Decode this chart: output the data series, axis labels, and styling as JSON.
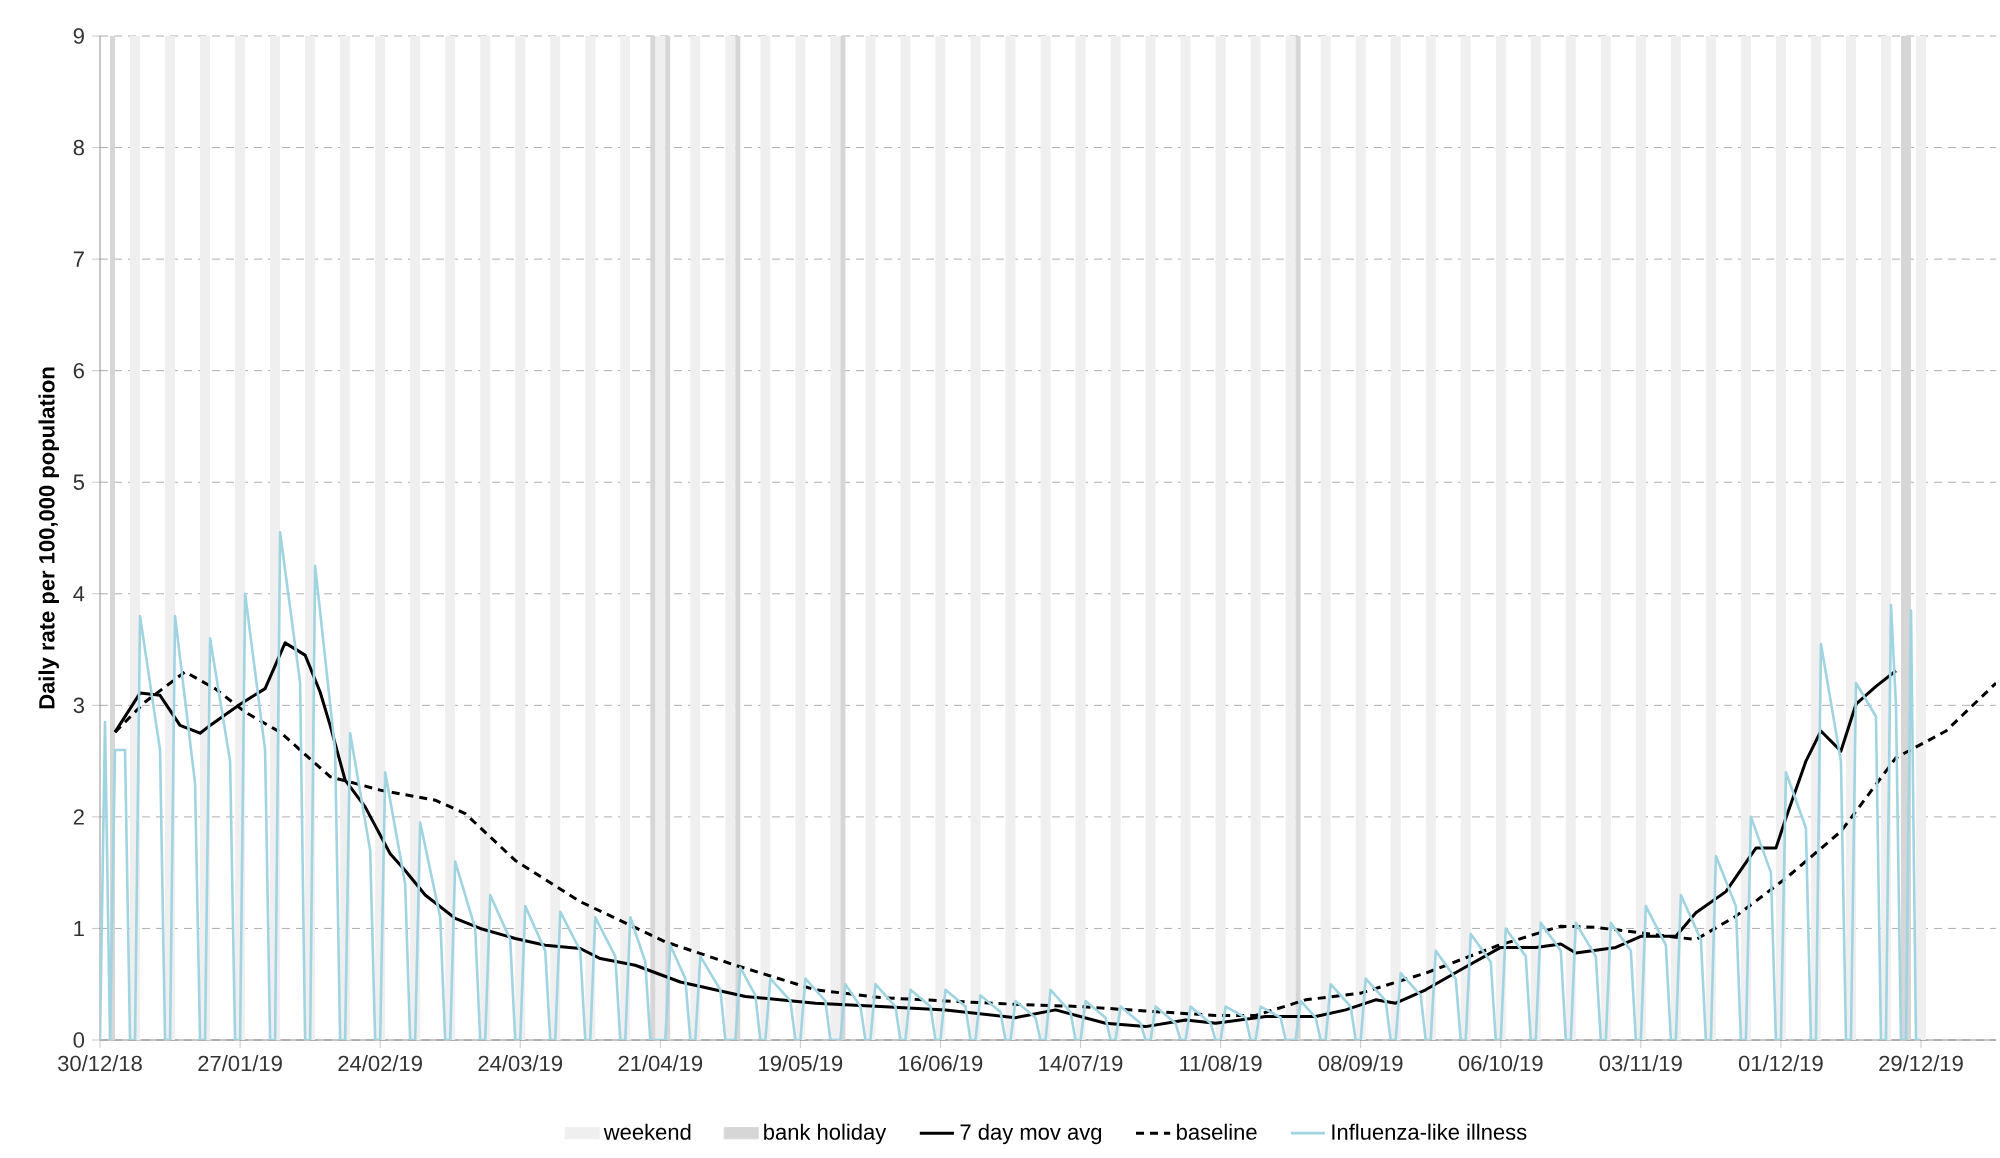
{
  "chart_data": {
    "type": "line",
    "ylabel": "Daily rate per 100,000 population",
    "xlim": [
      "2018-12-30",
      "2020-01-13"
    ],
    "xticks": [
      {
        "value": "2018-12-30",
        "label": "30/12/18"
      },
      {
        "value": "2019-01-27",
        "label": "27/01/19"
      },
      {
        "value": "2019-02-24",
        "label": "24/02/19"
      },
      {
        "value": "2019-03-24",
        "label": "24/03/19"
      },
      {
        "value": "2019-04-21",
        "label": "21/04/19"
      },
      {
        "value": "2019-05-19",
        "label": "19/05/19"
      },
      {
        "value": "2019-06-16",
        "label": "16/06/19"
      },
      {
        "value": "2019-07-14",
        "label": "14/07/19"
      },
      {
        "value": "2019-08-11",
        "label": "11/08/19"
      },
      {
        "value": "2019-09-08",
        "label": "08/09/19"
      },
      {
        "value": "2019-10-06",
        "label": "06/10/19"
      },
      {
        "value": "2019-11-03",
        "label": "03/11/19"
      },
      {
        "value": "2019-12-01",
        "label": "01/12/19"
      },
      {
        "value": "2019-12-29",
        "label": "29/12/19"
      }
    ],
    "ylim": [
      0,
      9
    ],
    "yticks": [
      0,
      1,
      2,
      3,
      4,
      5,
      6,
      7,
      8,
      9
    ],
    "grid": "y",
    "legend": "bottom",
    "bands": [
      {
        "axis": "x",
        "from": "2019-01-05",
        "to": "2019-01-07",
        "label": "weekend",
        "color": "#efefef"
      },
      {
        "axis": "x",
        "from": "2019-01-12",
        "to": "2019-01-14",
        "color": "#efefef"
      },
      {
        "axis": "x",
        "from": "2019-01-19",
        "to": "2019-01-21",
        "color": "#efefef"
      },
      {
        "axis": "x",
        "from": "2019-01-26",
        "to": "2019-01-28",
        "color": "#efefef"
      },
      {
        "axis": "x",
        "from": "2019-02-02",
        "to": "2019-02-04",
        "color": "#efefef"
      },
      {
        "axis": "x",
        "from": "2019-02-09",
        "to": "2019-02-11",
        "color": "#efefef"
      },
      {
        "axis": "x",
        "from": "2019-02-16",
        "to": "2019-02-18",
        "color": "#efefef"
      },
      {
        "axis": "x",
        "from": "2019-02-23",
        "to": "2019-02-25",
        "color": "#efefef"
      },
      {
        "axis": "x",
        "from": "2019-03-02",
        "to": "2019-03-04",
        "color": "#efefef"
      },
      {
        "axis": "x",
        "from": "2019-03-09",
        "to": "2019-03-11",
        "color": "#efefef"
      },
      {
        "axis": "x",
        "from": "2019-03-16",
        "to": "2019-03-18",
        "color": "#efefef"
      },
      {
        "axis": "x",
        "from": "2019-03-23",
        "to": "2019-03-25",
        "color": "#efefef"
      },
      {
        "axis": "x",
        "from": "2019-03-30",
        "to": "2019-04-01",
        "color": "#efefef"
      },
      {
        "axis": "x",
        "from": "2019-04-06",
        "to": "2019-04-08",
        "color": "#efefef"
      },
      {
        "axis": "x",
        "from": "2019-04-13",
        "to": "2019-04-15",
        "color": "#efefef"
      },
      {
        "axis": "x",
        "from": "2019-04-20",
        "to": "2019-04-22",
        "color": "#efefef"
      },
      {
        "axis": "x",
        "from": "2019-04-27",
        "to": "2019-04-29",
        "color": "#efefef"
      },
      {
        "axis": "x",
        "from": "2019-05-04",
        "to": "2019-05-06",
        "color": "#efefef"
      },
      {
        "axis": "x",
        "from": "2019-05-11",
        "to": "2019-05-13",
        "color": "#efefef"
      },
      {
        "axis": "x",
        "from": "2019-05-18",
        "to": "2019-05-20",
        "color": "#efefef"
      },
      {
        "axis": "x",
        "from": "2019-05-25",
        "to": "2019-05-27",
        "color": "#efefef"
      },
      {
        "axis": "x",
        "from": "2019-06-01",
        "to": "2019-06-03",
        "color": "#efefef"
      },
      {
        "axis": "x",
        "from": "2019-06-08",
        "to": "2019-06-10",
        "color": "#efefef"
      },
      {
        "axis": "x",
        "from": "2019-06-15",
        "to": "2019-06-17",
        "color": "#efefef"
      },
      {
        "axis": "x",
        "from": "2019-06-22",
        "to": "2019-06-24",
        "color": "#efefef"
      },
      {
        "axis": "x",
        "from": "2019-06-29",
        "to": "2019-07-01",
        "color": "#efefef"
      },
      {
        "axis": "x",
        "from": "2019-07-06",
        "to": "2019-07-08",
        "color": "#efefef"
      },
      {
        "axis": "x",
        "from": "2019-07-13",
        "to": "2019-07-15",
        "color": "#efefef"
      },
      {
        "axis": "x",
        "from": "2019-07-20",
        "to": "2019-07-22",
        "color": "#efefef"
      },
      {
        "axis": "x",
        "from": "2019-07-27",
        "to": "2019-07-29",
        "color": "#efefef"
      },
      {
        "axis": "x",
        "from": "2019-08-03",
        "to": "2019-08-05",
        "color": "#efefef"
      },
      {
        "axis": "x",
        "from": "2019-08-10",
        "to": "2019-08-12",
        "color": "#efefef"
      },
      {
        "axis": "x",
        "from": "2019-08-17",
        "to": "2019-08-19",
        "color": "#efefef"
      },
      {
        "axis": "x",
        "from": "2019-08-24",
        "to": "2019-08-26",
        "color": "#efefef"
      },
      {
        "axis": "x",
        "from": "2019-08-31",
        "to": "2019-09-02",
        "color": "#efefef"
      },
      {
        "axis": "x",
        "from": "2019-09-07",
        "to": "2019-09-09",
        "color": "#efefef"
      },
      {
        "axis": "x",
        "from": "2019-09-14",
        "to": "2019-09-16",
        "color": "#efefef"
      },
      {
        "axis": "x",
        "from": "2019-09-21",
        "to": "2019-09-23",
        "color": "#efefef"
      },
      {
        "axis": "x",
        "from": "2019-09-28",
        "to": "2019-09-30",
        "color": "#efefef"
      },
      {
        "axis": "x",
        "from": "2019-10-05",
        "to": "2019-10-07",
        "color": "#efefef"
      },
      {
        "axis": "x",
        "from": "2019-10-12",
        "to": "2019-10-14",
        "color": "#efefef"
      },
      {
        "axis": "x",
        "from": "2019-10-19",
        "to": "2019-10-21",
        "color": "#efefef"
      },
      {
        "axis": "x",
        "from": "2019-10-26",
        "to": "2019-10-28",
        "color": "#efefef"
      },
      {
        "axis": "x",
        "from": "2019-11-02",
        "to": "2019-11-04",
        "color": "#efefef"
      },
      {
        "axis": "x",
        "from": "2019-11-09",
        "to": "2019-11-11",
        "color": "#efefef"
      },
      {
        "axis": "x",
        "from": "2019-11-16",
        "to": "2019-11-18",
        "color": "#efefef"
      },
      {
        "axis": "x",
        "from": "2019-11-23",
        "to": "2019-11-25",
        "color": "#efefef"
      },
      {
        "axis": "x",
        "from": "2019-11-30",
        "to": "2019-12-02",
        "color": "#efefef"
      },
      {
        "axis": "x",
        "from": "2019-12-07",
        "to": "2019-12-09",
        "color": "#efefef"
      },
      {
        "axis": "x",
        "from": "2019-12-14",
        "to": "2019-12-16",
        "color": "#efefef"
      },
      {
        "axis": "x",
        "from": "2019-12-21",
        "to": "2019-12-23",
        "color": "#efefef"
      },
      {
        "axis": "x",
        "from": "2019-12-28",
        "to": "2019-12-30",
        "color": "#efefef"
      },
      {
        "axis": "x",
        "from": "2019-01-01",
        "to": "2019-01-02",
        "label": "bank holiday",
        "color": "#d6d6d6"
      },
      {
        "axis": "x",
        "from": "2019-04-19",
        "to": "2019-04-20",
        "color": "#d6d6d6"
      },
      {
        "axis": "x",
        "from": "2019-04-22",
        "to": "2019-04-23",
        "color": "#d6d6d6"
      },
      {
        "axis": "x",
        "from": "2019-05-06",
        "to": "2019-05-07",
        "color": "#d6d6d6"
      },
      {
        "axis": "x",
        "from": "2019-05-27",
        "to": "2019-05-28",
        "color": "#d6d6d6"
      },
      {
        "axis": "x",
        "from": "2019-08-26",
        "to": "2019-08-27",
        "color": "#d6d6d6"
      },
      {
        "axis": "x",
        "from": "2019-12-25",
        "to": "2019-12-27",
        "color": "#d6d6d6"
      }
    ],
    "series": [
      {
        "name": "7 day mov avg",
        "color": "#000000",
        "line_style": "solid",
        "x": [
          "2019-01-02",
          "2019-01-07",
          "2019-01-11",
          "2019-01-15",
          "2019-01-19",
          "2019-01-21",
          "2019-01-27",
          "2019-02-01",
          "2019-02-05",
          "2019-02-09",
          "2019-02-12",
          "2019-02-14",
          "2019-02-17",
          "2019-02-21",
          "2019-02-26",
          "2019-03-01",
          "2019-03-05",
          "2019-03-11",
          "2019-03-16",
          "2019-03-23",
          "2019-03-29",
          "2019-04-05",
          "2019-04-09",
          "2019-04-16",
          "2019-04-25",
          "2019-05-08",
          "2019-05-22",
          "2019-06-04",
          "2019-06-17",
          "2019-07-01",
          "2019-07-09",
          "2019-07-19",
          "2019-07-27",
          "2019-08-04",
          "2019-08-10",
          "2019-08-20",
          "2019-08-30",
          "2019-09-05",
          "2019-09-11",
          "2019-09-15",
          "2019-09-21",
          "2019-09-28",
          "2019-10-06",
          "2019-10-13",
          "2019-10-18",
          "2019-10-21",
          "2019-10-29",
          "2019-11-03",
          "2019-11-10",
          "2019-11-14",
          "2019-11-20",
          "2019-11-26",
          "2019-11-30",
          "2019-12-02",
          "2019-12-06",
          "2019-12-09",
          "2019-12-13",
          "2019-12-16",
          "2019-12-20",
          "2019-12-24"
        ],
        "values": [
          2.76,
          3.11,
          3.09,
          2.82,
          2.75,
          2.82,
          3.01,
          3.15,
          3.56,
          3.45,
          3.12,
          2.82,
          2.33,
          2.09,
          1.67,
          1.52,
          1.3,
          1.09,
          1.0,
          0.91,
          0.85,
          0.82,
          0.73,
          0.67,
          0.52,
          0.39,
          0.33,
          0.3,
          0.27,
          0.2,
          0.27,
          0.15,
          0.12,
          0.18,
          0.15,
          0.21,
          0.21,
          0.27,
          0.36,
          0.33,
          0.45,
          0.63,
          0.83,
          0.83,
          0.86,
          0.78,
          0.83,
          0.93,
          0.93,
          1.14,
          1.33,
          1.72,
          1.72,
          1.99,
          2.5,
          2.77,
          2.59,
          3.01,
          3.17,
          3.31
        ]
      },
      {
        "name": "baseline",
        "color": "#000000",
        "line_style": "dashed",
        "x": [
          "2019-01-02",
          "2019-01-08",
          "2019-01-16",
          "2019-01-22",
          "2019-01-28",
          "2019-02-04",
          "2019-02-14",
          "2019-02-24",
          "2019-03-07",
          "2019-03-13",
          "2019-03-23",
          "2019-04-05",
          "2019-04-22",
          "2019-05-06",
          "2019-05-22",
          "2019-06-04",
          "2019-06-17",
          "2019-07-01",
          "2019-07-14",
          "2019-07-27",
          "2019-08-10",
          "2019-08-18",
          "2019-08-28",
          "2019-09-08",
          "2019-09-21",
          "2019-10-05",
          "2019-10-18",
          "2019-10-25",
          "2019-11-03",
          "2019-11-14",
          "2019-11-22",
          "2019-12-02",
          "2019-12-13",
          "2019-12-24",
          "2020-01-03",
          "2020-01-13"
        ],
        "values": [
          2.76,
          3.03,
          3.3,
          3.15,
          2.94,
          2.76,
          2.36,
          2.24,
          2.15,
          2.03,
          1.61,
          1.24,
          0.88,
          0.67,
          0.45,
          0.38,
          0.35,
          0.32,
          0.3,
          0.26,
          0.22,
          0.22,
          0.36,
          0.42,
          0.6,
          0.84,
          1.02,
          1.01,
          0.96,
          0.9,
          1.11,
          1.45,
          1.87,
          2.53,
          2.77,
          3.2
        ]
      },
      {
        "name": "Influenza-like illness",
        "color": "#9fd4e0",
        "line_style": "solid",
        "x": [
          "2018-12-30",
          "2018-12-31",
          "2019-01-01",
          "2019-01-02",
          "2019-01-04",
          "2019-01-05",
          "2019-01-06",
          "2019-01-07",
          "2019-01-11",
          "2019-01-12",
          "2019-01-13",
          "2019-01-14",
          "2019-01-18",
          "2019-01-19",
          "2019-01-20",
          "2019-01-21",
          "2019-01-25",
          "2019-01-26",
          "2019-01-27",
          "2019-01-28",
          "2019-02-01",
          "2019-02-02",
          "2019-02-03",
          "2019-02-04",
          "2019-02-08",
          "2019-02-09",
          "2019-02-10",
          "2019-02-11",
          "2019-02-15",
          "2019-02-16",
          "2019-02-17",
          "2019-02-18",
          "2019-02-22",
          "2019-02-23",
          "2019-02-24",
          "2019-02-25",
          "2019-03-01",
          "2019-03-02",
          "2019-03-03",
          "2019-03-04",
          "2019-03-08",
          "2019-03-09",
          "2019-03-10",
          "2019-03-11",
          "2019-03-15",
          "2019-03-16",
          "2019-03-17",
          "2019-03-18",
          "2019-03-22",
          "2019-03-23",
          "2019-03-24",
          "2019-03-25",
          "2019-03-29",
          "2019-03-30",
          "2019-03-31",
          "2019-04-01",
          "2019-04-05",
          "2019-04-06",
          "2019-04-07",
          "2019-04-08",
          "2019-04-12",
          "2019-04-13",
          "2019-04-14",
          "2019-04-15",
          "2019-04-18",
          "2019-04-19",
          "2019-04-22",
          "2019-04-23",
          "2019-04-26",
          "2019-04-27",
          "2019-04-28",
          "2019-04-29",
          "2019-05-03",
          "2019-05-04",
          "2019-05-06",
          "2019-05-07",
          "2019-05-10",
          "2019-05-11",
          "2019-05-12",
          "2019-05-13",
          "2019-05-17",
          "2019-05-18",
          "2019-05-19",
          "2019-05-20",
          "2019-05-24",
          "2019-05-25",
          "2019-05-27",
          "2019-05-28",
          "2019-05-31",
          "2019-06-01",
          "2019-06-02",
          "2019-06-03",
          "2019-06-07",
          "2019-06-08",
          "2019-06-09",
          "2019-06-10",
          "2019-06-14",
          "2019-06-15",
          "2019-06-16",
          "2019-06-17",
          "2019-06-21",
          "2019-06-22",
          "2019-06-23",
          "2019-06-24",
          "2019-06-28",
          "2019-06-29",
          "2019-06-30",
          "2019-07-01",
          "2019-07-05",
          "2019-07-06",
          "2019-07-07",
          "2019-07-08",
          "2019-07-12",
          "2019-07-13",
          "2019-07-14",
          "2019-07-15",
          "2019-07-19",
          "2019-07-20",
          "2019-07-21",
          "2019-07-22",
          "2019-07-26",
          "2019-07-27",
          "2019-07-28",
          "2019-07-29",
          "2019-08-02",
          "2019-08-03",
          "2019-08-04",
          "2019-08-05",
          "2019-08-09",
          "2019-08-10",
          "2019-08-11",
          "2019-08-12",
          "2019-08-16",
          "2019-08-17",
          "2019-08-18",
          "2019-08-19",
          "2019-08-23",
          "2019-08-24",
          "2019-08-26",
          "2019-08-27",
          "2019-08-30",
          "2019-08-31",
          "2019-09-01",
          "2019-09-02",
          "2019-09-06",
          "2019-09-07",
          "2019-09-08",
          "2019-09-09",
          "2019-09-13",
          "2019-09-14",
          "2019-09-15",
          "2019-09-16",
          "2019-09-20",
          "2019-09-21",
          "2019-09-22",
          "2019-09-23",
          "2019-09-27",
          "2019-09-28",
          "2019-09-29",
          "2019-09-30",
          "2019-10-04",
          "2019-10-05",
          "2019-10-06",
          "2019-10-07",
          "2019-10-11",
          "2019-10-12",
          "2019-10-13",
          "2019-10-14",
          "2019-10-18",
          "2019-10-19",
          "2019-10-20",
          "2019-10-21",
          "2019-10-25",
          "2019-10-26",
          "2019-10-27",
          "2019-10-28",
          "2019-11-01",
          "2019-11-02",
          "2019-11-03",
          "2019-11-04",
          "2019-11-08",
          "2019-11-09",
          "2019-11-10",
          "2019-11-11",
          "2019-11-15",
          "2019-11-16",
          "2019-11-17",
          "2019-11-18",
          "2019-11-22",
          "2019-11-23",
          "2019-11-24",
          "2019-11-25",
          "2019-11-29",
          "2019-11-30",
          "2019-12-01",
          "2019-12-02",
          "2019-12-06",
          "2019-12-07",
          "2019-12-08",
          "2019-12-09",
          "2019-12-13",
          "2019-12-14",
          "2019-12-15",
          "2019-12-16",
          "2019-12-20",
          "2019-12-21",
          "2019-12-22",
          "2019-12-23",
          "2019-12-24",
          "2019-12-25",
          "2019-12-26",
          "2019-12-27",
          "2019-12-28",
          "2019-12-29"
        ],
        "values": [
          0,
          2.85,
          0,
          2.6,
          2.6,
          0,
          0,
          3.8,
          2.6,
          0,
          0,
          3.8,
          2.3,
          0,
          0,
          3.6,
          2.5,
          0,
          0,
          4.0,
          2.6,
          0,
          0,
          4.55,
          3.2,
          0,
          0,
          4.25,
          2.6,
          0,
          0,
          2.75,
          1.7,
          0,
          0,
          2.4,
          1.4,
          0,
          0,
          1.95,
          1.1,
          0,
          0,
          1.6,
          1.0,
          0,
          0,
          1.3,
          0.9,
          0,
          0,
          1.2,
          0.8,
          0,
          0,
          1.15,
          0.8,
          0,
          0,
          1.1,
          0.75,
          0,
          0,
          1.1,
          0.7,
          0,
          0,
          0.85,
          0.55,
          0,
          0,
          0.75,
          0.45,
          0,
          0,
          0.65,
          0.4,
          0,
          0,
          0.55,
          0.35,
          0,
          0,
          0.55,
          0.35,
          0,
          0,
          0.5,
          0.3,
          0,
          0,
          0.5,
          0.3,
          0,
          0,
          0.45,
          0.3,
          0,
          0,
          0.45,
          0.3,
          0,
          0,
          0.4,
          0.25,
          0,
          0,
          0.35,
          0.2,
          0,
          0,
          0.45,
          0.25,
          0,
          0,
          0.35,
          0.2,
          0,
          0,
          0.3,
          0.15,
          0,
          0,
          0.3,
          0.15,
          0,
          0,
          0.3,
          0.15,
          0,
          0,
          0.3,
          0.2,
          0,
          0,
          0.3,
          0.2,
          0,
          0,
          0.35,
          0.2,
          0,
          0,
          0.5,
          0.3,
          0,
          0,
          0.55,
          0.35,
          0,
          0,
          0.6,
          0.4,
          0,
          0,
          0.8,
          0.55,
          0,
          0,
          0.95,
          0.7,
          0,
          0,
          1.0,
          0.75,
          0,
          0,
          1.05,
          0.8,
          0,
          0,
          1.05,
          0.75,
          0,
          0,
          1.05,
          0.8,
          0,
          0,
          1.2,
          0.85,
          0,
          0,
          1.3,
          0.9,
          0,
          0,
          1.65,
          1.2,
          0,
          0,
          2.0,
          1.5,
          0,
          0,
          2.4,
          1.9,
          0,
          0,
          3.55,
          2.5,
          0,
          0,
          3.2,
          2.9,
          0,
          0,
          3.9,
          3.0,
          0,
          0,
          3.85,
          0,
          0
        ]
      }
    ]
  }
}
